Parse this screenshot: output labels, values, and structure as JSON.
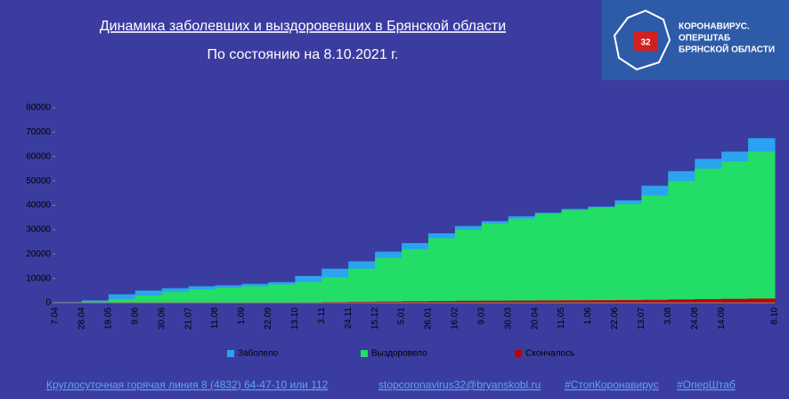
{
  "chart_data": {
    "type": "bar",
    "title": "Динамика заболевших и выздоровевших в Брянской области",
    "subtitle": "По состоянию на 8.10.2021 г.",
    "categories": [
      "7.04",
      "28.04",
      "19.05",
      "9.06",
      "30.06",
      "21.07",
      "11.08",
      "1.09",
      "22.09",
      "13.10",
      "3.11",
      "24.11",
      "15.12",
      "5.01",
      "26.01",
      "16.02",
      "9.03",
      "30.03",
      "20.04",
      "11.05",
      "1.06",
      "22.06",
      "13.07",
      "3.08",
      "24.08",
      "14.09",
      "8.10"
    ],
    "series": [
      {
        "name": "Заболело",
        "color": "#2aa4f0",
        "values": [
          300,
          1000,
          3500,
          5000,
          6000,
          6800,
          7200,
          7800,
          8500,
          11000,
          14000,
          17000,
          21000,
          24500,
          28500,
          31500,
          33500,
          35500,
          37000,
          38500,
          39500,
          42000,
          48000,
          54000,
          59000,
          62000,
          67500
        ]
      },
      {
        "name": "Выздоровело",
        "color": "#22dd66",
        "values": [
          0,
          300,
          1500,
          3000,
          4500,
          5500,
          6200,
          6800,
          7500,
          8500,
          10500,
          14000,
          18500,
          22000,
          26500,
          30000,
          32500,
          34500,
          36500,
          38000,
          39000,
          40500,
          44000,
          50000,
          55000,
          58000,
          62000
        ]
      },
      {
        "name": "Скончалось",
        "color": "#c00000",
        "values": [
          0,
          10,
          30,
          60,
          80,
          100,
          120,
          130,
          150,
          200,
          300,
          400,
          500,
          600,
          700,
          800,
          850,
          900,
          950,
          1000,
          1050,
          1100,
          1200,
          1350,
          1500,
          1600,
          1700
        ]
      }
    ],
    "ylim": [
      0,
      80000
    ],
    "yticks": [
      0,
      10000,
      20000,
      30000,
      40000,
      50000,
      60000,
      70000,
      80000
    ],
    "grid": false
  },
  "logo": {
    "lines": [
      "КОРОНАВИРУС.",
      "ОПЕРШТАБ",
      "БРЯНСКОЙ ОБЛАСТИ"
    ],
    "badge": "32"
  },
  "footer": [
    "Круглосуточная горячая линия  8 (4832) 64-47-10 или  112",
    "stopcoronavirus32@bryanskobl.ru",
    "#СтопКоронавирус",
    "#ОперШтаб"
  ]
}
